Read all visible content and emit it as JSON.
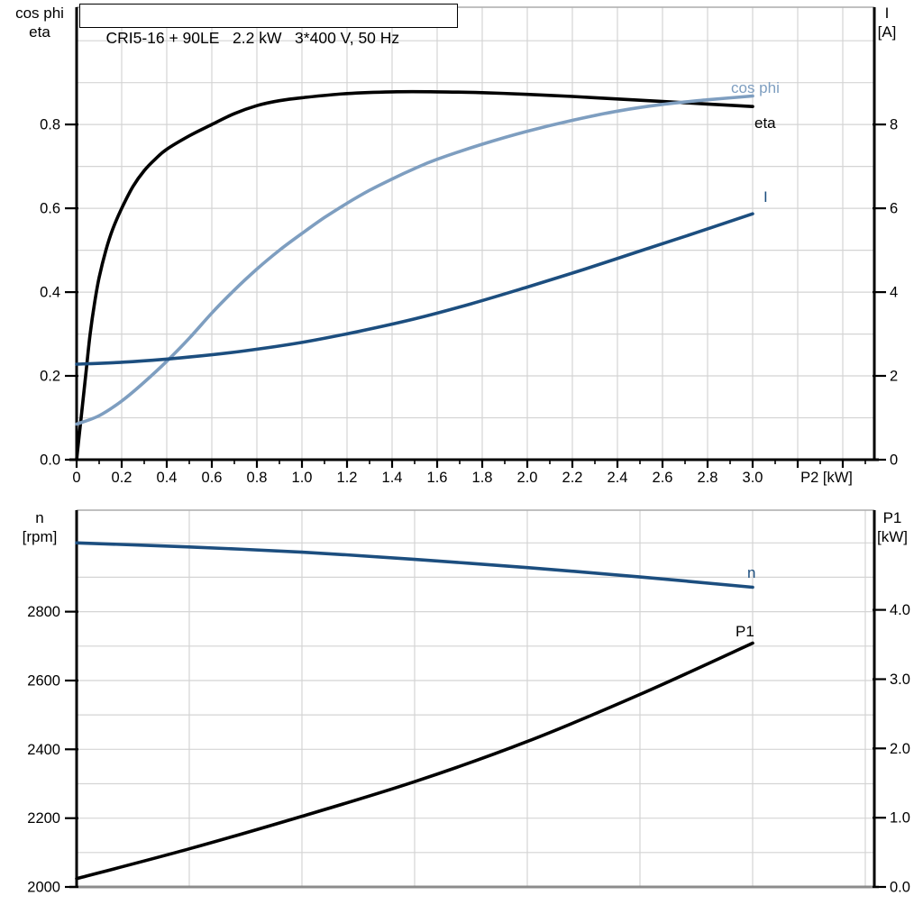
{
  "colors": {
    "curve_black": "#000000",
    "curve_light_blue": "#7E9EC0",
    "curve_dark_blue": "#1C4E7F",
    "grid": "#D4D4D4",
    "axis": "#000000",
    "frame_gray": "#8C8C8C",
    "frame_light": "#ABABAB",
    "text": "#000000"
  },
  "chart_data": [
    {
      "type": "line",
      "title": "CRI5-16 + 90LE   2.2 kW   3*400 V, 50 Hz",
      "grid": true,
      "legend": "inline-curve-labels",
      "x_axis": {
        "label": "P2 [kW]",
        "range": [
          0,
          3.54
        ],
        "tick_values": [
          0,
          0.2,
          0.4,
          0.6,
          0.8,
          1.0,
          1.2,
          1.4,
          1.6,
          1.8,
          2.0,
          2.2,
          2.4,
          2.6,
          2.8,
          3.0
        ],
        "tick_labels": [
          "0",
          "0.2",
          "0.4",
          "0.6",
          "0.8",
          "1.0",
          "1.2",
          "1.4",
          "1.6",
          "1.8",
          "2.0",
          "2.2",
          "2.4",
          "2.6",
          "2.8",
          "3.0"
        ]
      },
      "left_axis": {
        "label_lines": [
          "cos phi",
          "eta"
        ],
        "range": [
          0,
          1.08
        ],
        "tick_values": [
          0,
          0.2,
          0.4,
          0.6,
          0.8
        ],
        "tick_labels": [
          "0.0",
          "0.2",
          "0.4",
          "0.6",
          "0.8"
        ]
      },
      "right_axis": {
        "label_lines": [
          "I",
          "[A]"
        ],
        "range": [
          0,
          10.8
        ],
        "tick_values": [
          0,
          2,
          4,
          6,
          8
        ],
        "tick_labels": [
          "0",
          "2",
          "4",
          "6",
          "8"
        ]
      },
      "series": [
        {
          "name": "eta",
          "axis": "left",
          "color_key": "curve_black",
          "points": [
            [
              0,
              0
            ],
            [
              0.02,
              0.1
            ],
            [
              0.04,
              0.2
            ],
            [
              0.06,
              0.3
            ],
            [
              0.08,
              0.375
            ],
            [
              0.1,
              0.435
            ],
            [
              0.13,
              0.5
            ],
            [
              0.16,
              0.55
            ],
            [
              0.2,
              0.6
            ],
            [
              0.25,
              0.652
            ],
            [
              0.3,
              0.69
            ],
            [
              0.35,
              0.718
            ],
            [
              0.4,
              0.741
            ],
            [
              0.5,
              0.773
            ],
            [
              0.6,
              0.8
            ],
            [
              0.7,
              0.826
            ],
            [
              0.8,
              0.845
            ],
            [
              0.9,
              0.857
            ],
            [
              1.0,
              0.864
            ],
            [
              1.2,
              0.874
            ],
            [
              1.4,
              0.878
            ],
            [
              1.6,
              0.878
            ],
            [
              1.8,
              0.876
            ],
            [
              2.0,
              0.872
            ],
            [
              2.2,
              0.867
            ],
            [
              2.4,
              0.861
            ],
            [
              2.6,
              0.855
            ],
            [
              2.8,
              0.849
            ],
            [
              3.0,
              0.843
            ]
          ]
        },
        {
          "name": "cos phi",
          "axis": "left",
          "color_key": "curve_light_blue",
          "points": [
            [
              0,
              0.085
            ],
            [
              0.1,
              0.105
            ],
            [
              0.2,
              0.14
            ],
            [
              0.3,
              0.185
            ],
            [
              0.4,
              0.235
            ],
            [
              0.5,
              0.29
            ],
            [
              0.6,
              0.35
            ],
            [
              0.7,
              0.405
            ],
            [
              0.8,
              0.455
            ],
            [
              0.9,
              0.5
            ],
            [
              1.0,
              0.54
            ],
            [
              1.1,
              0.578
            ],
            [
              1.2,
              0.612
            ],
            [
              1.3,
              0.643
            ],
            [
              1.4,
              0.67
            ],
            [
              1.5,
              0.695
            ],
            [
              1.6,
              0.717
            ],
            [
              1.8,
              0.753
            ],
            [
              2.0,
              0.784
            ],
            [
              2.2,
              0.81
            ],
            [
              2.4,
              0.832
            ],
            [
              2.6,
              0.848
            ],
            [
              2.8,
              0.859
            ],
            [
              3.0,
              0.868
            ]
          ]
        },
        {
          "name": "I",
          "axis": "right",
          "color_key": "curve_dark_blue",
          "points": [
            [
              0,
              2.28
            ],
            [
              0.25,
              2.34
            ],
            [
              0.5,
              2.45
            ],
            [
              0.75,
              2.6
            ],
            [
              1.0,
              2.8
            ],
            [
              1.25,
              3.06
            ],
            [
              1.5,
              3.36
            ],
            [
              1.75,
              3.72
            ],
            [
              2.0,
              4.12
            ],
            [
              2.25,
              4.54
            ],
            [
              2.5,
              4.98
            ],
            [
              2.75,
              5.42
            ],
            [
              3.0,
              5.87
            ]
          ]
        }
      ]
    },
    {
      "type": "line",
      "title": "",
      "grid": true,
      "legend": "inline-curve-labels",
      "x_axis": {
        "label": "",
        "range": [
          0,
          3.54
        ],
        "tick_values": [],
        "tick_labels": []
      },
      "left_axis": {
        "label_lines": [
          "n",
          "[rpm]"
        ],
        "range": [
          2000,
          3095
        ],
        "tick_values": [
          2000,
          2200,
          2400,
          2600,
          2800
        ],
        "tick_labels": [
          "2000",
          "2200",
          "2400",
          "2600",
          "2800"
        ]
      },
      "right_axis": {
        "label_lines": [
          "P1",
          "[kW]"
        ],
        "range": [
          0,
          5.44
        ],
        "tick_values": [
          0,
          1,
          2,
          3,
          4
        ],
        "tick_labels": [
          "0.0",
          "1.0",
          "2.0",
          "3.0",
          "4.0"
        ]
      },
      "series": [
        {
          "name": "n",
          "axis": "left",
          "color_key": "curve_dark_blue",
          "points": [
            [
              0,
              3000
            ],
            [
              0.5,
              2988
            ],
            [
              1.0,
              2973
            ],
            [
              1.5,
              2952
            ],
            [
              2.0,
              2928
            ],
            [
              2.5,
              2901
            ],
            [
              3.0,
              2871
            ]
          ]
        },
        {
          "name": "P1",
          "axis": "right",
          "color_key": "curve_black",
          "points": [
            [
              0,
              0.12
            ],
            [
              0.5,
              0.55
            ],
            [
              1.0,
              1.02
            ],
            [
              1.5,
              1.52
            ],
            [
              2.0,
              2.1
            ],
            [
              2.5,
              2.78
            ],
            [
              3.0,
              3.52
            ]
          ]
        }
      ]
    }
  ]
}
